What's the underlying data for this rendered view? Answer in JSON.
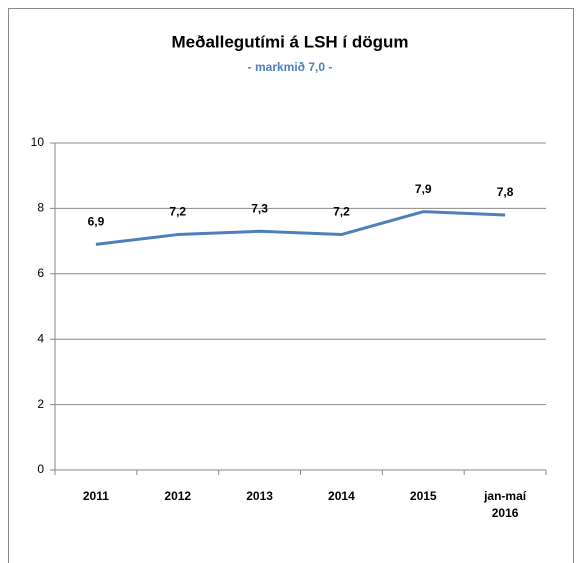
{
  "chart_data": {
    "type": "line",
    "title": "Meðallegutími á LSH í dögum",
    "subtitle": "- markmið 7,0 -",
    "categories": [
      "2011",
      "2012",
      "2013",
      "2014",
      "2015",
      "jan-maí 2016"
    ],
    "values": [
      6.9,
      7.2,
      7.3,
      7.2,
      7.9,
      7.8
    ],
    "value_labels": [
      "6,9",
      "7,2",
      "7,3",
      "7,2",
      "7,9",
      "7,8"
    ],
    "color": "#4f7fb9",
    "ylim": [
      0,
      10
    ],
    "yticks": [
      0,
      2,
      4,
      6,
      8,
      10
    ],
    "grid": true
  }
}
